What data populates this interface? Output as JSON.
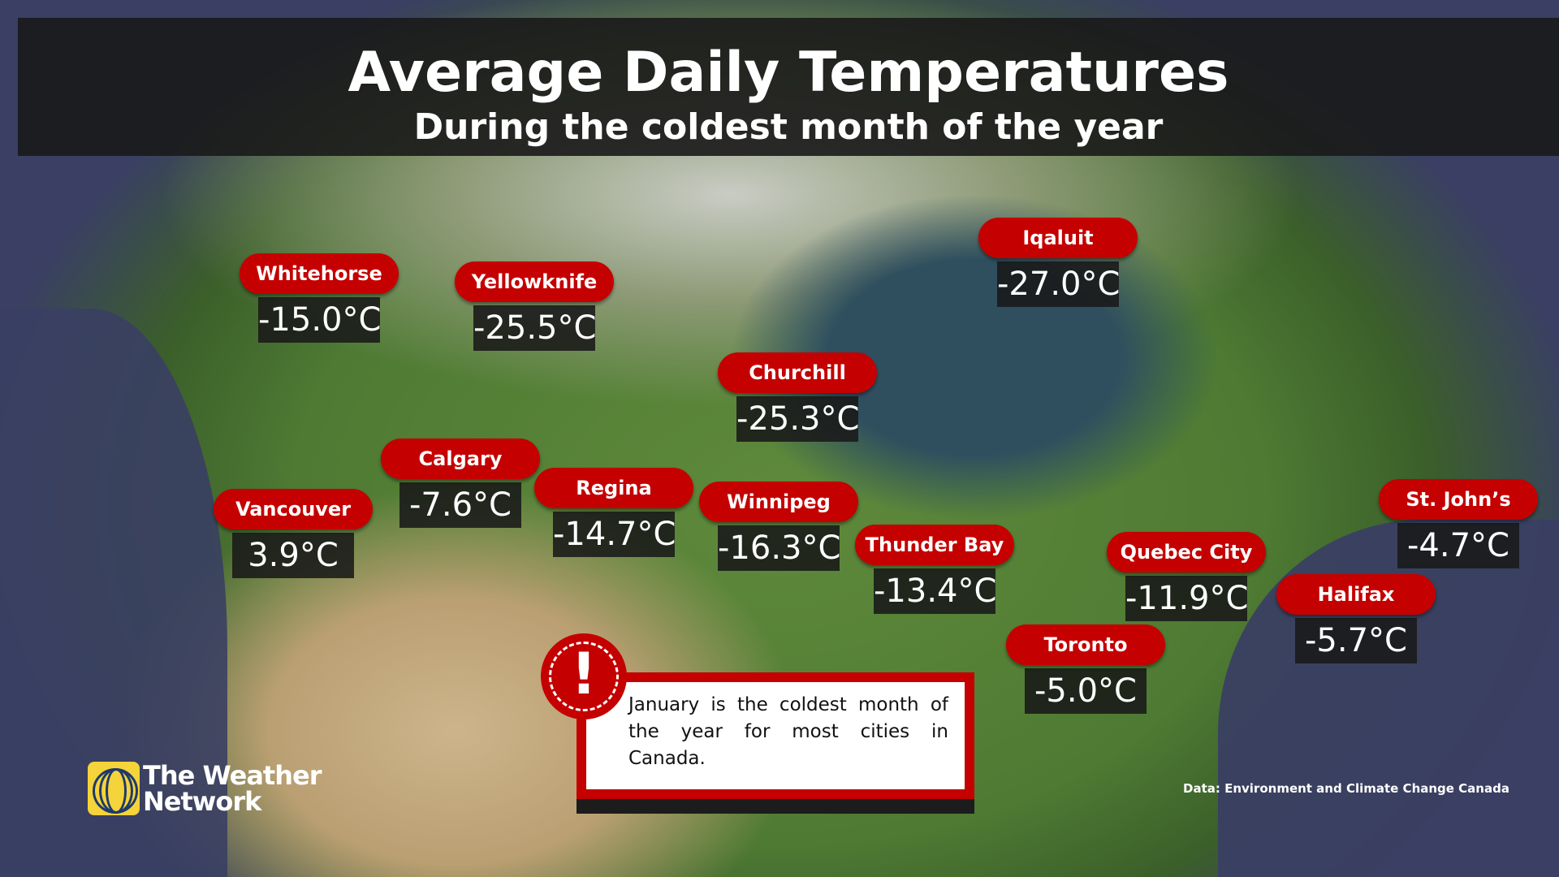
{
  "header": {
    "title": "Average Daily Temperatures",
    "subtitle": "During the coldest month of the year"
  },
  "cities": [
    {
      "name": "Whitehorse",
      "temp": "-15.0°C"
    },
    {
      "name": "Yellowknife",
      "temp": "-25.5°C"
    },
    {
      "name": "Iqaluit",
      "temp": "-27.0°C"
    },
    {
      "name": "Churchill",
      "temp": "-25.3°C"
    },
    {
      "name": "Calgary",
      "temp": "-7.6°C"
    },
    {
      "name": "Regina",
      "temp": "-14.7°C"
    },
    {
      "name": "Vancouver",
      "temp": "3.9°C"
    },
    {
      "name": "Winnipeg",
      "temp": "-16.3°C"
    },
    {
      "name": "Thunder Bay",
      "temp": "-13.4°C"
    },
    {
      "name": "Quebec City",
      "temp": "-11.9°C"
    },
    {
      "name": "St. John’s",
      "temp": "-4.7°C"
    },
    {
      "name": "Halifax",
      "temp": "-5.7°C"
    },
    {
      "name": "Toronto",
      "temp": "-5.0°C"
    }
  ],
  "callout": {
    "icon": "exclamation-icon",
    "symbol": "!",
    "text": "January is the coldest month of the year for most cities in Canada."
  },
  "logo": {
    "line1": "The Weather",
    "line2": "Network"
  },
  "source": "Data: Environment and Climate Change Canada",
  "colors": {
    "label_red": "#c40000",
    "temp_box": "#191919",
    "ocean": "#3a3f63"
  }
}
